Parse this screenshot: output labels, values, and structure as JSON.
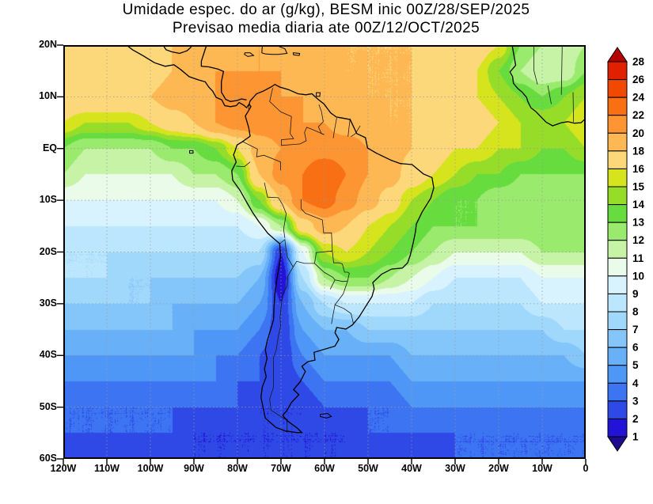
{
  "title": {
    "line1": "Umidade espec. do ar (g/kg), BESM inic 00Z/28/SEP/2025",
    "line2": "Previsao media diaria ate 00Z/12/OCT/2025"
  },
  "axes": {
    "lat_labels": [
      "20N",
      "10N",
      "EQ",
      "10S",
      "20S",
      "30S",
      "40S",
      "50S",
      "60S"
    ],
    "lon_labels": [
      "120W",
      "110W",
      "100W",
      "90W",
      "80W",
      "70W",
      "60W",
      "50W",
      "40W",
      "30W",
      "20W",
      "10W",
      "0"
    ]
  },
  "chart_data": {
    "type": "heatmap",
    "title": "Umidade espec. do ar (g/kg), BESM inic 00Z/28/SEP/2025",
    "subtitle": "Previsao media diaria ate 00Z/12/OCT/2025",
    "units": "g/kg",
    "lon_range": [
      -120,
      0
    ],
    "lat_range": [
      -60,
      20
    ],
    "grid_on": true,
    "legend_position": "right",
    "levels": [
      1,
      2,
      3,
      4,
      5,
      6,
      7,
      8,
      9,
      10,
      11,
      12,
      13,
      14,
      15,
      16,
      18,
      20,
      22,
      24,
      26,
      28
    ],
    "palette": [
      "#1e0c8e",
      "#2313d6",
      "#2e49e6",
      "#3c74f2",
      "#4f97f6",
      "#68b1f8",
      "#84c6fa",
      "#a0d8fc",
      "#bce6fd",
      "#d8f2fe",
      "#eafbea",
      "#c6f3a6",
      "#9aea6e",
      "#66dc3e",
      "#96dd2a",
      "#d6e41e",
      "#fdd87a",
      "#fdb854",
      "#fd9632",
      "#f97014",
      "#f14802",
      "#e02000",
      "#b40000"
    ],
    "grid": {
      "lons": [
        -120,
        -115,
        -110,
        -105,
        -100,
        -95,
        -90,
        -85,
        -80,
        -75,
        -70,
        -65,
        -60,
        -55,
        -50,
        -45,
        -40,
        -35,
        -30,
        -25,
        -20,
        -15,
        -10,
        -5,
        0
      ],
      "lats": [
        20,
        15,
        10,
        5,
        0,
        -5,
        -10,
        -15,
        -20,
        -25,
        -30,
        -35,
        -40,
        -45,
        -50,
        -55,
        -60
      ],
      "values": [
        [
          17,
          17,
          17,
          17,
          17,
          18,
          18,
          19,
          19,
          20,
          19,
          19,
          19,
          18,
          18,
          18,
          18,
          18,
          17,
          17,
          16,
          13,
          12,
          11,
          12
        ],
        [
          17,
          17,
          17,
          17,
          17,
          18,
          19,
          20,
          20,
          20,
          20,
          19,
          19,
          18,
          18,
          18,
          18,
          17,
          17,
          16,
          14,
          12,
          11,
          11,
          13
        ],
        [
          18,
          18,
          18,
          18,
          18,
          19,
          19,
          20,
          21,
          21,
          20,
          20,
          19,
          19,
          18,
          18,
          18,
          17,
          17,
          16,
          15,
          14,
          13,
          14,
          15
        ],
        [
          16,
          15,
          15,
          15,
          16,
          17,
          18,
          20,
          21,
          21,
          21,
          20,
          20,
          19,
          19,
          18,
          18,
          18,
          17,
          17,
          16,
          15,
          15,
          15,
          16
        ],
        [
          13,
          12,
          12,
          12,
          12,
          13,
          13,
          14,
          16,
          19,
          20,
          21,
          21,
          21,
          20,
          19,
          18,
          17,
          16,
          16,
          15,
          15,
          14,
          14,
          15
        ],
        [
          12,
          11,
          11,
          11,
          11,
          11,
          12,
          12,
          13,
          18,
          21,
          22,
          24,
          22,
          20,
          19,
          17,
          16,
          15,
          14,
          14,
          13,
          13,
          13,
          13
        ],
        [
          10,
          10,
          10,
          10,
          10,
          10,
          10,
          10,
          11,
          14,
          18,
          22,
          23,
          21,
          19,
          17,
          15,
          14,
          13,
          13,
          12,
          12,
          12,
          12,
          12
        ],
        [
          9,
          9,
          9,
          9,
          9,
          9,
          9,
          9,
          9,
          10,
          12,
          17,
          19,
          18,
          16,
          15,
          14,
          13,
          13,
          13,
          13,
          13,
          13,
          13,
          13
        ],
        [
          8,
          8,
          8,
          8,
          8,
          8,
          8,
          8,
          8,
          8,
          2,
          10,
          15,
          16,
          15,
          14,
          13,
          12,
          11,
          11,
          11,
          11,
          12,
          12,
          12
        ],
        [
          8,
          8,
          8,
          7,
          7,
          7,
          7,
          7,
          7,
          6,
          1,
          8,
          12,
          13,
          13,
          12,
          11,
          10,
          9,
          9,
          9,
          9,
          10,
          10,
          10
        ],
        [
          7,
          7,
          7,
          7,
          7,
          6,
          6,
          6,
          6,
          5,
          2,
          6,
          8,
          9,
          9,
          9,
          9,
          8,
          8,
          8,
          8,
          8,
          9,
          9,
          9
        ],
        [
          6,
          6,
          6,
          6,
          6,
          6,
          5,
          5,
          5,
          4,
          2,
          5,
          6,
          6,
          7,
          7,
          7,
          7,
          7,
          7,
          7,
          7,
          7,
          8,
          8
        ],
        [
          5,
          5,
          5,
          5,
          5,
          5,
          5,
          4,
          4,
          3,
          2,
          4,
          5,
          5,
          5,
          5,
          6,
          6,
          6,
          6,
          6,
          6,
          6,
          6,
          7
        ],
        [
          4,
          4,
          4,
          4,
          4,
          4,
          4,
          4,
          3,
          3,
          2,
          3,
          4,
          4,
          4,
          4,
          5,
          5,
          5,
          5,
          5,
          5,
          5,
          5,
          5
        ],
        [
          3,
          3,
          3,
          3,
          3,
          3,
          3,
          3,
          3,
          2,
          2,
          2,
          3,
          3,
          3,
          3,
          4,
          4,
          4,
          4,
          4,
          4,
          4,
          4,
          4
        ],
        [
          3,
          3,
          3,
          3,
          3,
          3,
          2,
          2,
          2,
          2,
          2,
          2,
          2,
          2,
          3,
          3,
          3,
          3,
          3,
          3,
          3,
          3,
          3,
          3,
          3
        ],
        [
          2,
          2,
          2,
          2,
          2,
          2,
          2,
          2,
          2,
          2,
          2,
          2,
          2,
          2,
          2,
          2,
          2,
          2,
          3,
          3,
          3,
          3,
          3,
          3,
          3
        ]
      ]
    }
  }
}
